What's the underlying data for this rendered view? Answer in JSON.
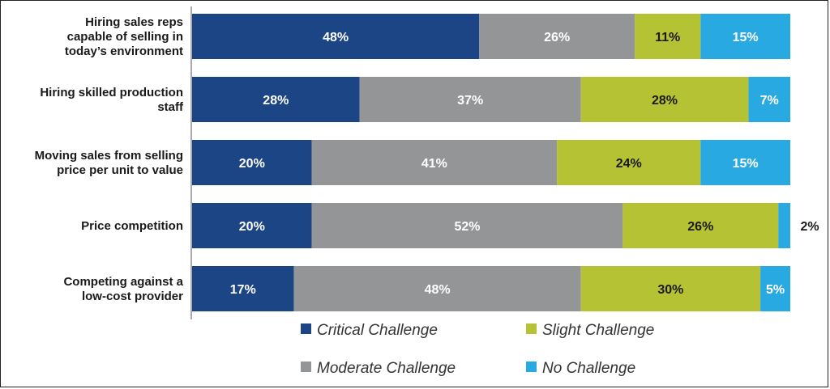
{
  "chart_data": {
    "type": "bar",
    "orientation": "horizontal",
    "stacked": true,
    "categories": [
      [
        "Hiring sales reps",
        "capable of selling in",
        "today’s environment"
      ],
      [
        "Hiring skilled production",
        "staff"
      ],
      [
        "Moving sales from selling",
        "price per unit to value"
      ],
      [
        "Price competition"
      ],
      [
        "Competing against a",
        "low-cost provider"
      ]
    ],
    "series": [
      {
        "name": "Critical Challenge",
        "color": "#1c4585",
        "values": [
          48,
          28,
          20,
          20,
          17
        ]
      },
      {
        "name": "Moderate Challenge",
        "color": "#939597",
        "values": [
          26,
          37,
          41,
          52,
          48
        ]
      },
      {
        "name": "Slight Challenge",
        "color": "#b5c234",
        "values": [
          11,
          28,
          24,
          26,
          30
        ]
      },
      {
        "name": "No Challenge",
        "color": "#29a9e1",
        "values": [
          15,
          7,
          15,
          2,
          5
        ]
      }
    ],
    "value_suffix": "%",
    "label_colors": [
      "#ffffff",
      "#ffffff",
      "#1a1a1a",
      "#ffffff"
    ],
    "xlim": [
      0,
      100
    ],
    "grid": false,
    "legend": "bottom"
  }
}
